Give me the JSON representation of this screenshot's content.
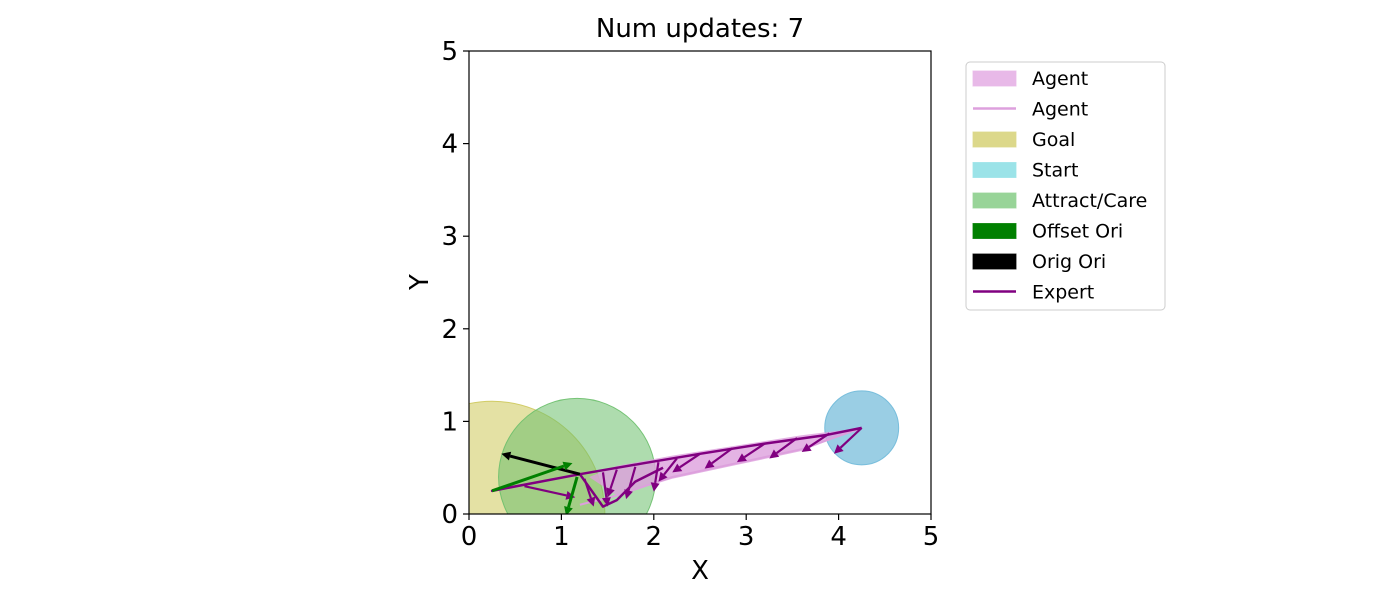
{
  "chart_data": {
    "type": "line",
    "title": "Num updates: 7",
    "xlabel": "X",
    "ylabel": "Y",
    "xlim": [
      0,
      5
    ],
    "ylim": [
      0,
      5
    ],
    "xticks": [
      "0",
      "1",
      "2",
      "3",
      "4",
      "5"
    ],
    "yticks": [
      "0",
      "1",
      "2",
      "3",
      "4",
      "5"
    ],
    "grid": false,
    "legend_placement": "outside-right-top",
    "legend": [
      {
        "label": "Agent",
        "kind": "patch",
        "color": "#e8b9e8"
      },
      {
        "label": "Agent",
        "kind": "line",
        "color": "#dda0dd"
      },
      {
        "label": "Goal",
        "kind": "patch",
        "color": "#dcd88a"
      },
      {
        "label": "Start",
        "kind": "patch",
        "color": "#9be3e8"
      },
      {
        "label": "Attract/Care",
        "kind": "patch",
        "color": "#98d498"
      },
      {
        "label": "Offset Ori",
        "kind": "patch",
        "color": "#008000"
      },
      {
        "label": "Orig Ori",
        "kind": "patch",
        "color": "#000000"
      },
      {
        "label": "Expert",
        "kind": "line",
        "color": "#800080"
      }
    ],
    "circles": [
      {
        "name": "Goal",
        "cx": 0.25,
        "cy": 0.0,
        "r": 1.22,
        "color": "#cdc85a",
        "opacity": 0.55
      },
      {
        "name": "Attract/Care",
        "cx": 1.17,
        "cy": 0.4,
        "r": 0.85,
        "color": "#6cbf6c",
        "opacity": 0.55
      },
      {
        "name": "Start",
        "cx": 4.25,
        "cy": 0.93,
        "r": 0.4,
        "color": "#6fb9d9",
        "opacity": 0.7
      }
    ],
    "series": [
      {
        "name": "Expert",
        "color": "#800080",
        "x": [
          4.25,
          3.85,
          3.2,
          2.5,
          1.9,
          1.2,
          0.25,
          1.2,
          1.45,
          1.6,
          1.8,
          2.1
        ],
        "y": [
          0.93,
          0.85,
          0.76,
          0.65,
          0.55,
          0.43,
          0.25,
          0.43,
          0.08,
          0.15,
          0.35,
          0.5
        ]
      },
      {
        "name": "Agent",
        "color": "#dda0dd",
        "x": [
          4.25,
          3.6,
          2.9,
          2.2,
          1.6,
          1.2
        ],
        "y": [
          0.93,
          0.7,
          0.55,
          0.4,
          0.2,
          0.1
        ]
      }
    ],
    "agent_band": {
      "x": [
        4.25,
        3.6,
        2.9,
        2.2,
        1.6,
        1.3,
        1.6,
        2.2,
        2.9,
        3.6,
        4.25
      ],
      "y": [
        0.93,
        0.85,
        0.74,
        0.63,
        0.52,
        0.4,
        0.2,
        0.38,
        0.53,
        0.68,
        0.93
      ]
    },
    "expert_arrows": [
      {
        "x": 4.25,
        "y": 0.93,
        "dx": -0.3,
        "dy": -0.28
      },
      {
        "x": 3.9,
        "y": 0.87,
        "dx": -0.3,
        "dy": -0.2
      },
      {
        "x": 3.55,
        "y": 0.82,
        "dx": -0.3,
        "dy": -0.22
      },
      {
        "x": 3.2,
        "y": 0.76,
        "dx": -0.3,
        "dy": -0.2
      },
      {
        "x": 2.85,
        "y": 0.71,
        "dx": -0.3,
        "dy": -0.22
      },
      {
        "x": 2.5,
        "y": 0.65,
        "dx": -0.3,
        "dy": -0.2
      },
      {
        "x": 2.25,
        "y": 0.6,
        "dx": -0.2,
        "dy": -0.25
      },
      {
        "x": 2.05,
        "y": 0.56,
        "dx": -0.05,
        "dy": -0.32
      },
      {
        "x": 1.8,
        "y": 0.51,
        "dx": -0.1,
        "dy": -0.35
      },
      {
        "x": 1.6,
        "y": 0.48,
        "dx": -0.1,
        "dy": -0.3
      },
      {
        "x": 1.45,
        "y": 0.45,
        "dx": 0.05,
        "dy": -0.37
      },
      {
        "x": 1.25,
        "y": 0.38,
        "dx": 0.1,
        "dy": -0.3
      },
      {
        "x": 0.6,
        "y": 0.3,
        "dx": 0.55,
        "dy": -0.12
      }
    ],
    "orientation_arrows": [
      {
        "name": "Orig Ori",
        "color": "#000000",
        "x": 1.2,
        "y": 0.43,
        "dx": -0.85,
        "dy": 0.22
      },
      {
        "name": "Offset Ori",
        "color": "#008000",
        "x": 0.25,
        "y": 0.25,
        "dx": 0.87,
        "dy": 0.3
      },
      {
        "name": "Offset Ori",
        "color": "#008000",
        "x": 1.17,
        "y": 0.4,
        "dx": -0.12,
        "dy": -0.42
      }
    ]
  }
}
